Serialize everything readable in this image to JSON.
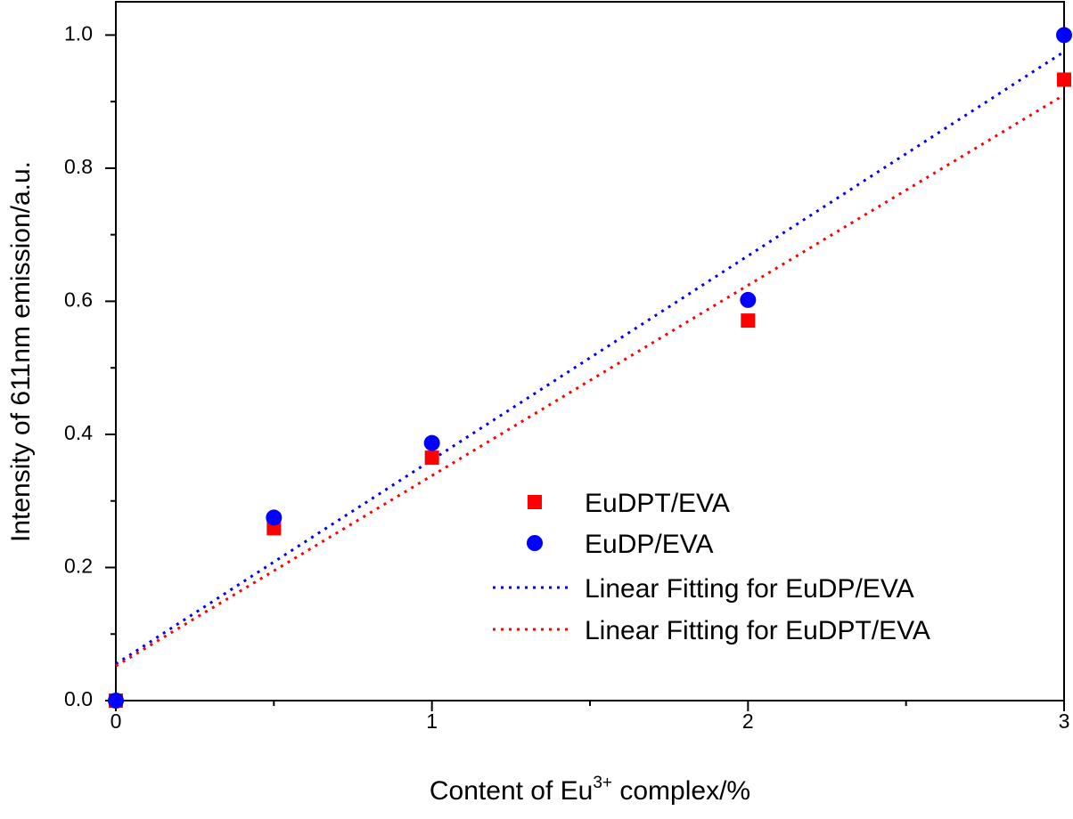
{
  "chart_data": {
    "type": "scatter",
    "xlabel_main": "Content of Eu",
    "xlabel_sup": "3+",
    "xlabel_tail": " complex/%",
    "ylabel": "Intensity of 611nm emission/a.u.",
    "xlim": [
      0,
      3
    ],
    "ylim": [
      0,
      1.05
    ],
    "x_ticks": [
      0,
      1,
      2,
      3
    ],
    "x_tick_labels": [
      "0",
      "1",
      "2",
      "3"
    ],
    "x_minor_ticks": [
      0.5,
      1.5,
      2.5
    ],
    "y_ticks": [
      0.0,
      0.2,
      0.4,
      0.6,
      0.8,
      1.0
    ],
    "y_tick_labels": [
      "0.0",
      "0.2",
      "0.4",
      "0.6",
      "0.8",
      "1.0"
    ],
    "y_minor_ticks": [
      0.1,
      0.3,
      0.5,
      0.7,
      0.9
    ],
    "grid": false,
    "legend_position": "center-right",
    "series": [
      {
        "name": "EuDPT/EVA",
        "kind": "points",
        "marker": "square",
        "color": "#ff0000",
        "x": [
          0,
          0.5,
          1,
          2,
          3
        ],
        "y": [
          0.0,
          0.259,
          0.365,
          0.571,
          0.933
        ]
      },
      {
        "name": "EuDP/EVA",
        "kind": "points",
        "marker": "circle",
        "color": "#0000ff",
        "x": [
          0,
          0.5,
          1,
          2,
          3
        ],
        "y": [
          0.0,
          0.275,
          0.387,
          0.602,
          1.0
        ]
      },
      {
        "name": "Linear Fitting for EuDP/EVA",
        "kind": "line",
        "dash": "dotted",
        "color": "#0000ff",
        "x": [
          0,
          3
        ],
        "y": [
          0.055,
          0.975
        ]
      },
      {
        "name": "Linear Fitting for EuDPT/EVA",
        "kind": "line",
        "dash": "dotted",
        "color": "#ff0000",
        "x": [
          0,
          3
        ],
        "y": [
          0.052,
          0.91
        ]
      }
    ]
  }
}
